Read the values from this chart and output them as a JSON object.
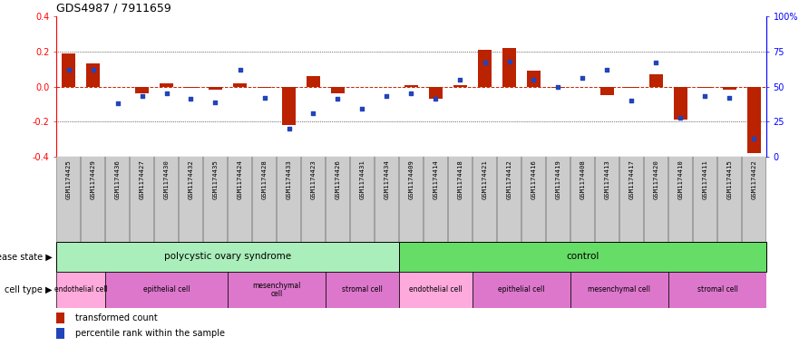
{
  "title": "GDS4987 / 7911659",
  "samples": [
    "GSM1174425",
    "GSM1174429",
    "GSM1174436",
    "GSM1174427",
    "GSM1174430",
    "GSM1174432",
    "GSM1174435",
    "GSM1174424",
    "GSM1174428",
    "GSM1174433",
    "GSM1174423",
    "GSM1174426",
    "GSM1174431",
    "GSM1174434",
    "GSM1174409",
    "GSM1174414",
    "GSM1174418",
    "GSM1174421",
    "GSM1174412",
    "GSM1174416",
    "GSM1174419",
    "GSM1174408",
    "GSM1174413",
    "GSM1174417",
    "GSM1174420",
    "GSM1174410",
    "GSM1174411",
    "GSM1174415",
    "GSM1174422"
  ],
  "transformed_count": [
    0.19,
    0.13,
    0.0,
    -0.04,
    0.02,
    -0.01,
    -0.02,
    0.02,
    -0.01,
    -0.22,
    0.06,
    -0.04,
    0.0,
    0.0,
    0.01,
    -0.07,
    0.01,
    0.21,
    0.22,
    0.09,
    -0.01,
    0.0,
    -0.05,
    -0.01,
    0.07,
    -0.19,
    -0.01,
    -0.02,
    -0.38
  ],
  "percentile_dots": [
    62,
    62,
    38,
    43,
    45,
    41,
    39,
    62,
    42,
    20,
    31,
    41,
    34,
    43,
    45,
    41,
    55,
    67,
    68,
    55,
    50,
    56,
    62,
    40,
    67,
    28,
    43,
    42,
    13
  ],
  "pcos_range": [
    0,
    14
  ],
  "ctrl_range": [
    14,
    29
  ],
  "pcos_cells": [
    {
      "label": "endothelial cell",
      "start": 0,
      "end": 2
    },
    {
      "label": "epithelial cell",
      "start": 2,
      "end": 7
    },
    {
      "label": "mesenchymal\ncell",
      "start": 7,
      "end": 11
    },
    {
      "label": "stromal cell",
      "start": 11,
      "end": 14
    }
  ],
  "ctrl_cells": [
    {
      "label": "endothelial cell",
      "start": 14,
      "end": 17
    },
    {
      "label": "epithelial cell",
      "start": 17,
      "end": 21
    },
    {
      "label": "mesenchymal cell",
      "start": 21,
      "end": 25
    },
    {
      "label": "stromal cell",
      "start": 25,
      "end": 29
    }
  ],
  "ylim": [
    -0.4,
    0.4
  ],
  "yticks_left": [
    -0.4,
    -0.2,
    0.0,
    0.2,
    0.4
  ],
  "pct_ticks": [
    0,
    25,
    50,
    75,
    100
  ],
  "bar_color": "#bb2200",
  "dot_color": "#2244bb",
  "zero_line_color": "#cc2200",
  "pcos_bg": "#aaeebb",
  "ctrl_bg": "#66dd66",
  "endo_color": "#ffaadd",
  "other_cell_color": "#dd77cc",
  "xtick_bg": "#cccccc",
  "ds_left_label": "disease state ▶",
  "ct_left_label": "cell type ▶",
  "legend_bar_label": "transformed count",
  "legend_dot_label": "percentile rank within the sample"
}
